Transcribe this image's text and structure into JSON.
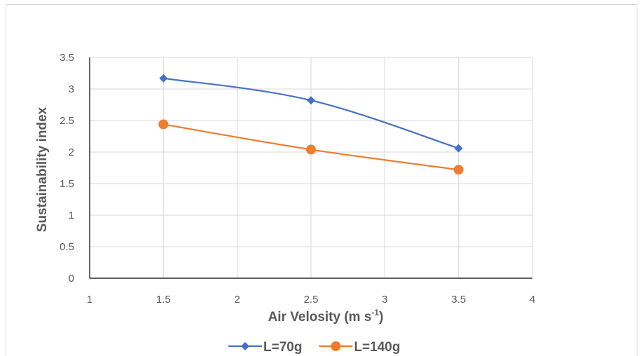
{
  "chart_data": {
    "type": "line",
    "title": "",
    "xlabel": "Air Velosity (m s",
    "xlabel_sup": "-1",
    "xlabel_end": ")",
    "ylabel": "Sustainability index",
    "xlim": [
      1,
      4
    ],
    "ylim": [
      0,
      3.5
    ],
    "xticks": [
      "1",
      "1.5",
      "2",
      "2.5",
      "3",
      "3.5",
      "4"
    ],
    "yticks": [
      "0",
      "0.5",
      "1",
      "1.5",
      "2",
      "2.5",
      "3",
      "3.5"
    ],
    "grid": true,
    "legend_position": "bottom",
    "series": [
      {
        "name": "L=70g",
        "color": "#4472c4",
        "marker": "diamond",
        "x": [
          1.5,
          2.5,
          3.5
        ],
        "y": [
          3.17,
          2.82,
          2.06
        ]
      },
      {
        "name": "L=140g",
        "color": "#ed7d31",
        "marker": "circle",
        "x": [
          1.5,
          2.5,
          3.5
        ],
        "y": [
          2.44,
          2.04,
          1.72
        ]
      }
    ]
  }
}
